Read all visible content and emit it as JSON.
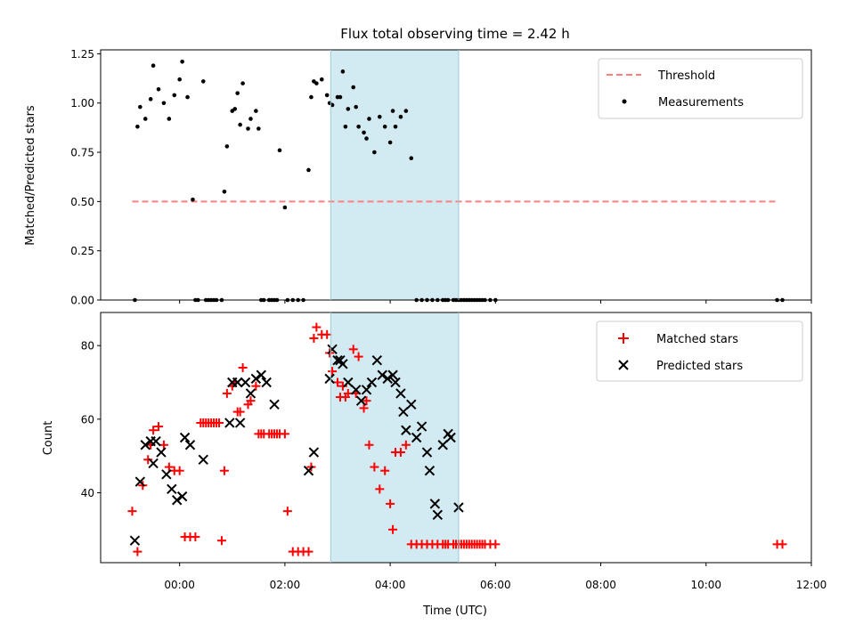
{
  "chart_data": [
    {
      "type": "scatter",
      "title": "Flux total observing time = 2.42 h",
      "ylabel": "Matched/Predicted stars",
      "xlabel": "",
      "xlim": [
        -1.5,
        12.0
      ],
      "ylim": [
        0,
        1.27
      ],
      "y_ticks": [
        "0.00",
        "0.25",
        "0.50",
        "0.75",
        "1.00",
        "1.25"
      ],
      "y_tick_values": [
        0,
        0.25,
        0.5,
        0.75,
        1.0,
        1.25
      ],
      "shaded_span": [
        2.87,
        5.3
      ],
      "legend_position": "top-right",
      "threshold": {
        "name": "Threshold",
        "value": 0.5,
        "x_range": [
          -0.9,
          11.35
        ],
        "color": "#ff7f7f",
        "style": "dashed"
      },
      "series": [
        {
          "name": "Measurements",
          "color": "#000000",
          "marker": "dot",
          "x": [
            -0.85,
            -0.8,
            -0.75,
            -0.65,
            -0.55,
            -0.5,
            -0.4,
            -0.3,
            -0.2,
            -0.1,
            0.0,
            0.05,
            0.15,
            0.25,
            0.3,
            0.35,
            0.45,
            0.5,
            0.55,
            0.6,
            0.65,
            0.7,
            0.8,
            0.85,
            0.9,
            1.0,
            1.05,
            1.1,
            1.15,
            1.2,
            1.3,
            1.35,
            1.45,
            1.5,
            1.55,
            1.6,
            1.7,
            1.75,
            1.8,
            1.85,
            1.9,
            2.0,
            2.05,
            2.15,
            2.25,
            2.35,
            2.45,
            2.5,
            2.55,
            2.6,
            2.7,
            2.8,
            2.85,
            2.9,
            3.0,
            3.05,
            3.1,
            3.15,
            3.2,
            3.3,
            3.35,
            3.4,
            3.5,
            3.55,
            3.6,
            3.7,
            3.8,
            3.9,
            4.0,
            4.05,
            4.1,
            4.2,
            4.3,
            4.4,
            4.5,
            4.6,
            4.7,
            4.8,
            4.9,
            5.0,
            5.05,
            5.1,
            5.2,
            5.25,
            5.3,
            5.35,
            5.4,
            5.45,
            5.5,
            5.55,
            5.6,
            5.65,
            5.7,
            5.75,
            5.8,
            5.9,
            6.0,
            11.35,
            11.45
          ],
          "y": [
            0.0,
            0.88,
            0.98,
            0.92,
            1.02,
            1.19,
            1.07,
            1.0,
            0.92,
            1.04,
            1.12,
            1.21,
            1.03,
            0.51,
            0.0,
            0.0,
            1.11,
            0.0,
            0.0,
            0.0,
            0.0,
            0.0,
            0.0,
            0.55,
            0.78,
            0.96,
            0.97,
            1.05,
            0.89,
            1.1,
            0.87,
            0.92,
            0.96,
            0.87,
            0.0,
            0.0,
            0.0,
            0.0,
            0.0,
            0.0,
            0.76,
            0.47,
            0.0,
            0.0,
            0.0,
            0.0,
            0.66,
            1.03,
            1.11,
            1.1,
            1.12,
            1.04,
            1.0,
            0.99,
            1.03,
            1.03,
            1.16,
            0.88,
            0.97,
            1.08,
            0.98,
            0.88,
            0.85,
            0.82,
            0.92,
            0.75,
            0.93,
            0.88,
            0.8,
            0.96,
            0.88,
            0.93,
            0.96,
            0.72,
            0.0,
            0.0,
            0.0,
            0.0,
            0.0,
            0.0,
            0.0,
            0.0,
            0.0,
            0.0,
            0.0,
            0.0,
            0.0,
            0.0,
            0.0,
            0.0,
            0.0,
            0.0,
            0.0,
            0.0,
            0.0,
            0.0,
            0.0,
            0.0,
            0.0
          ]
        }
      ]
    },
    {
      "type": "scatter",
      "title": "",
      "ylabel": "Count",
      "xlabel": "Time (UTC)",
      "xlim": [
        -1.5,
        12.0
      ],
      "ylim": [
        21,
        89
      ],
      "y_ticks": [
        "40",
        "60",
        "80"
      ],
      "y_tick_values": [
        40,
        60,
        80
      ],
      "x_ticks": [
        "00:00",
        "02:00",
        "04:00",
        "06:00",
        "08:00",
        "10:00",
        "12:00"
      ],
      "x_tick_values": [
        0,
        2,
        4,
        6,
        8,
        10,
        12
      ],
      "shaded_span": [
        2.87,
        5.3
      ],
      "legend_position": "top-right",
      "series": [
        {
          "name": "Matched stars",
          "color": "#ff0000",
          "marker": "plus",
          "x": [
            -0.9,
            -0.8,
            -0.7,
            -0.6,
            -0.55,
            -0.5,
            -0.4,
            -0.3,
            -0.2,
            -0.1,
            0.0,
            0.1,
            0.2,
            0.3,
            0.4,
            0.45,
            0.5,
            0.55,
            0.6,
            0.65,
            0.7,
            0.75,
            0.8,
            0.85,
            0.9,
            1.0,
            1.05,
            1.1,
            1.15,
            1.2,
            1.3,
            1.35,
            1.45,
            1.5,
            1.55,
            1.6,
            1.7,
            1.75,
            1.8,
            1.85,
            1.9,
            2.0,
            2.05,
            2.15,
            2.25,
            2.35,
            2.45,
            2.5,
            2.55,
            2.6,
            2.7,
            2.8,
            2.85,
            2.9,
            3.0,
            3.05,
            3.1,
            3.15,
            3.2,
            3.3,
            3.35,
            3.4,
            3.5,
            3.55,
            3.6,
            3.7,
            3.8,
            3.9,
            4.0,
            4.05,
            4.1,
            4.2,
            4.3,
            4.4,
            4.5,
            4.6,
            4.7,
            4.8,
            4.9,
            5.0,
            5.05,
            5.1,
            5.2,
            5.25,
            5.3,
            5.35,
            5.4,
            5.45,
            5.5,
            5.55,
            5.6,
            5.65,
            5.7,
            5.75,
            5.8,
            5.9,
            6.0,
            11.35,
            11.45
          ],
          "y": [
            35,
            24,
            42,
            49,
            53,
            57,
            58,
            53,
            47,
            46,
            46,
            28,
            28,
            28,
            59,
            59,
            59,
            59,
            59,
            59,
            59,
            59,
            27,
            46,
            67,
            69,
            70,
            62,
            62,
            74,
            64,
            65,
            69,
            56,
            56,
            56,
            56,
            56,
            56,
            56,
            56,
            56,
            35,
            24,
            24,
            24,
            24,
            47,
            82,
            85,
            83,
            83,
            78,
            73,
            70,
            66,
            69,
            66,
            67,
            79,
            67,
            77,
            63,
            65,
            53,
            47,
            41,
            46,
            37,
            30,
            51,
            51,
            53,
            26,
            26,
            26,
            26,
            26,
            26,
            26,
            26,
            26,
            26,
            26,
            26,
            26,
            26,
            26,
            26,
            26,
            26,
            26,
            26,
            26,
            26,
            26,
            26,
            26,
            26
          ],
          "y_note": ""
        },
        {
          "name": "Predicted stars",
          "color": "#000000",
          "marker": "x",
          "x": [
            -0.85,
            -0.75,
            -0.65,
            -0.55,
            -0.5,
            -0.45,
            -0.35,
            -0.25,
            -0.15,
            -0.05,
            0.05,
            0.1,
            0.2,
            0.45,
            0.95,
            1.0,
            1.1,
            1.15,
            1.25,
            1.35,
            1.45,
            1.55,
            1.65,
            1.8,
            2.45,
            2.55,
            2.85,
            2.9,
            3.0,
            3.05,
            3.1,
            3.2,
            3.35,
            3.45,
            3.55,
            3.65,
            3.75,
            3.85,
            3.95,
            4.05,
            4.1,
            4.2,
            4.25,
            4.3,
            4.4,
            4.5,
            4.6,
            4.7,
            4.75,
            4.85,
            4.9,
            5.0,
            5.1,
            5.15,
            5.3
          ],
          "y": [
            27,
            43,
            53,
            54,
            48,
            54,
            51,
            45,
            41,
            38,
            39,
            55,
            53,
            49,
            59,
            70,
            70,
            59,
            70,
            67,
            71,
            72,
            70,
            64,
            46,
            51,
            71,
            79,
            76,
            76,
            75,
            70,
            68,
            65,
            68,
            70,
            76,
            72,
            71,
            72,
            70,
            67,
            62,
            57,
            64,
            55,
            58,
            51,
            46,
            37,
            34,
            53,
            56,
            55,
            36
          ]
        }
      ]
    }
  ]
}
